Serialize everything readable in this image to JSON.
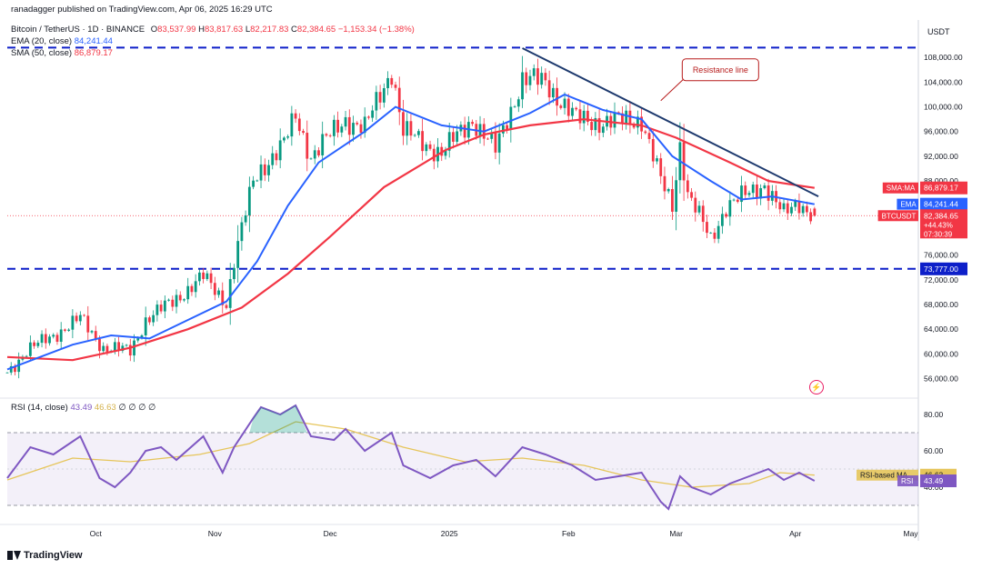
{
  "header": {
    "publisher": "ranadagger published on TradingView.com, Apr 06, 2025 16:29 UTC",
    "symbol": "Bitcoin / TetherUS · 1D · BINANCE",
    "ohlc": {
      "o_label": "O",
      "o": "83,537.99",
      "h_label": "H",
      "h": "83,817.63",
      "l_label": "L",
      "l": "82,217.83",
      "c_label": "C",
      "c": "82,384.65",
      "change": "−1,153.34 (−1.38%)"
    },
    "ema_label": "EMA (20, close)",
    "ema_value": "84,241.44",
    "sma_label": "SMA (50, close)",
    "sma_value": "86,879.17",
    "rsi_label": "RSI (14, close)",
    "rsi_value": "43.49",
    "rsi_ma_value": "46.63",
    "rsi_extra": "∅ ∅ ∅ ∅"
  },
  "branding": {
    "logo_text": "TradingView"
  },
  "icons": {
    "logo": "tradingview-logo-icon",
    "flash": "lightning-icon"
  },
  "colors": {
    "up": "#089981",
    "down": "#f23645",
    "ema": "#2962ff",
    "sma": "#f23645",
    "level": "#0d1fc9",
    "rsi": "#7e57c2",
    "rsi_ma": "#e6c55a",
    "trend": "#1e3a6e"
  },
  "chart_data": {
    "type": "candlestick",
    "title": "Bitcoin / TetherUS · 1D · BINANCE",
    "currency_label": "USDT",
    "y_ticks": [
      "108,000.00",
      "104,000.00",
      "100,000.00",
      "96,000.00",
      "92,000.00",
      "88,000.00",
      "76,000.00",
      "72,000.00",
      "68,000.00",
      "64,000.00",
      "60,000.00",
      "56,000.00"
    ],
    "y_tick_values": [
      108000,
      104000,
      100000,
      96000,
      92000,
      88000,
      76000,
      72000,
      68000,
      64000,
      60000,
      56000
    ],
    "ylim": [
      53000,
      112000
    ],
    "x_ticks": [
      "Oct",
      "Nov",
      "Dec",
      "2025",
      "Feb",
      "Mar",
      "Apr",
      "May"
    ],
    "x_tick_dates": [
      "2024-10-01",
      "2024-11-01",
      "2024-12-01",
      "2025-01-01",
      "2025-02-01",
      "2025-03-01",
      "2025-04-01",
      "2025-05-01"
    ],
    "date_range": [
      "2024-09-08",
      "2025-05-03"
    ],
    "anchors": [
      [
        "2024-09-08",
        57000
      ],
      [
        "2024-09-13",
        60500
      ],
      [
        "2024-09-20",
        63000
      ],
      [
        "2024-09-27",
        65800
      ],
      [
        "2024-10-03",
        61000
      ],
      [
        "2024-10-10",
        60500
      ],
      [
        "2024-10-14",
        65500
      ],
      [
        "2024-10-21",
        68500
      ],
      [
        "2024-10-29",
        72500
      ],
      [
        "2024-11-04",
        68300
      ],
      [
        "2024-11-06",
        75000
      ],
      [
        "2024-11-11",
        88000
      ],
      [
        "2024-11-13",
        90000
      ],
      [
        "2024-11-19",
        94000
      ],
      [
        "2024-11-22",
        98500
      ],
      [
        "2024-11-26",
        92000
      ],
      [
        "2024-12-05",
        98000
      ],
      [
        "2024-12-10",
        96500
      ],
      [
        "2024-12-17",
        106000
      ],
      [
        "2024-12-20",
        96000
      ],
      [
        "2024-12-30",
        92500
      ],
      [
        "2025-01-07",
        98000
      ],
      [
        "2025-01-13",
        93000
      ],
      [
        "2025-01-20",
        104500
      ],
      [
        "2025-01-26",
        104000
      ],
      [
        "2025-02-03",
        98000
      ],
      [
        "2025-02-10",
        97500
      ],
      [
        "2025-02-20",
        98000
      ],
      [
        "2025-02-25",
        88000
      ],
      [
        "2025-02-28",
        84000
      ],
      [
        "2025-03-02",
        94000
      ],
      [
        "2025-03-04",
        86000
      ],
      [
        "2025-03-10",
        78500
      ],
      [
        "2025-03-14",
        84000
      ],
      [
        "2025-03-20",
        86000
      ],
      [
        "2025-03-24",
        87500
      ],
      [
        "2025-03-29",
        82500
      ],
      [
        "2025-04-02",
        84500
      ],
      [
        "2025-04-06",
        82385
      ]
    ],
    "last_candle": {
      "o": 83537.99,
      "h": 83817.63,
      "l": 82217.83,
      "c": 82384.65
    },
    "ema_points": [
      [
        "2024-09-08",
        57500
      ],
      [
        "2024-09-25",
        61500
      ],
      [
        "2024-10-05",
        63000
      ],
      [
        "2024-10-15",
        62500
      ],
      [
        "2024-10-25",
        65500
      ],
      [
        "2024-11-04",
        68500
      ],
      [
        "2024-11-12",
        75000
      ],
      [
        "2024-11-20",
        84000
      ],
      [
        "2024-11-28",
        91000
      ],
      [
        "2024-12-10",
        96000
      ],
      [
        "2024-12-18",
        100000
      ],
      [
        "2024-12-30",
        97000
      ],
      [
        "2025-01-10",
        96000
      ],
      [
        "2025-01-22",
        99000
      ],
      [
        "2025-01-31",
        102000
      ],
      [
        "2025-02-10",
        99500
      ],
      [
        "2025-02-20",
        98000
      ],
      [
        "2025-02-28",
        92000
      ],
      [
        "2025-03-10",
        88000
      ],
      [
        "2025-03-18",
        85000
      ],
      [
        "2025-03-26",
        85500
      ],
      [
        "2025-04-06",
        84241.44
      ]
    ],
    "sma_points": [
      [
        "2024-09-08",
        59500
      ],
      [
        "2024-09-25",
        59000
      ],
      [
        "2024-10-10",
        61000
      ],
      [
        "2024-10-25",
        64000
      ],
      [
        "2024-11-08",
        67500
      ],
      [
        "2024-11-20",
        73000
      ],
      [
        "2024-12-01",
        79000
      ],
      [
        "2024-12-15",
        87000
      ],
      [
        "2024-12-31",
        93000
      ],
      [
        "2025-01-10",
        95500
      ],
      [
        "2025-01-22",
        97000
      ],
      [
        "2025-02-05",
        98000
      ],
      [
        "2025-02-20",
        97000
      ],
      [
        "2025-03-01",
        95000
      ],
      [
        "2025-03-15",
        91000
      ],
      [
        "2025-03-25",
        88000
      ],
      [
        "2025-04-06",
        86879.17
      ]
    ],
    "support_level": {
      "label": "73,777.00",
      "value": 73777
    },
    "upper_level": {
      "value": 109588
    },
    "trendline": [
      [
        "2025-01-20",
        109500
      ],
      [
        "2025-04-07",
        85500
      ]
    ],
    "annotation": {
      "text": "Resistance line",
      "target": [
        "2025-02-25",
        101000
      ],
      "box_at": [
        "2025-03-04",
        106000
      ]
    },
    "price_labels": [
      {
        "label": "SMA:MA",
        "value_text": "86,879.17",
        "value": 86879.17,
        "color": "#f23645"
      },
      {
        "label": "EMA",
        "value_text": "84,241.44",
        "value": 84241.44,
        "color": "#2962ff"
      },
      {
        "label": "BTCUSDT",
        "value_text": "82,384.65",
        "value": 82384.65,
        "color": "#f23645",
        "sub1": "+44.43%",
        "sub2": "07:30:39"
      },
      {
        "label": "",
        "value_text": "73,777.00",
        "value": 73777,
        "color": "#0d1fc9"
      }
    ],
    "rsi": {
      "ylim": [
        20,
        88
      ],
      "y_ticks": [
        "80.00",
        "60.00",
        "40.00"
      ],
      "y_tick_values": [
        80,
        60,
        40
      ],
      "band": [
        30,
        70
      ],
      "rsi_label": "RSI",
      "rsi_value": "43.49",
      "ma_label": "RSI-based MA",
      "ma_value": "46.63",
      "rsi_points": [
        [
          "2024-09-08",
          45
        ],
        [
          "2024-09-14",
          62
        ],
        [
          "2024-09-20",
          58
        ],
        [
          "2024-09-27",
          68
        ],
        [
          "2024-10-02",
          45
        ],
        [
          "2024-10-06",
          40
        ],
        [
          "2024-10-10",
          48
        ],
        [
          "2024-10-14",
          60
        ],
        [
          "2024-10-18",
          62
        ],
        [
          "2024-10-22",
          55
        ],
        [
          "2024-10-29",
          68
        ],
        [
          "2024-11-03",
          48
        ],
        [
          "2024-11-06",
          62
        ],
        [
          "2024-11-11",
          78
        ],
        [
          "2024-11-13",
          84
        ],
        [
          "2024-11-18",
          80
        ],
        [
          "2024-11-22",
          85
        ],
        [
          "2024-11-26",
          68
        ],
        [
          "2024-12-02",
          66
        ],
        [
          "2024-12-05",
          72
        ],
        [
          "2024-12-10",
          60
        ],
        [
          "2024-12-17",
          70
        ],
        [
          "2024-12-20",
          52
        ],
        [
          "2024-12-27",
          45
        ],
        [
          "2025-01-02",
          52
        ],
        [
          "2025-01-08",
          55
        ],
        [
          "2025-01-13",
          46
        ],
        [
          "2025-01-20",
          62
        ],
        [
          "2025-01-26",
          58
        ],
        [
          "2025-02-02",
          52
        ],
        [
          "2025-02-08",
          44
        ],
        [
          "2025-02-14",
          46
        ],
        [
          "2025-02-20",
          48
        ],
        [
          "2025-02-25",
          32
        ],
        [
          "2025-02-27",
          28
        ],
        [
          "2025-03-02",
          46
        ],
        [
          "2025-03-05",
          40
        ],
        [
          "2025-03-10",
          36
        ],
        [
          "2025-03-15",
          42
        ],
        [
          "2025-03-20",
          46
        ],
        [
          "2025-03-25",
          50
        ],
        [
          "2025-03-29",
          44
        ],
        [
          "2025-04-02",
          48
        ],
        [
          "2025-04-06",
          43.49
        ]
      ],
      "ma_points": [
        [
          "2024-09-08",
          44
        ],
        [
          "2024-09-25",
          56
        ],
        [
          "2024-10-10",
          54
        ],
        [
          "2024-10-28",
          58
        ],
        [
          "2024-11-10",
          64
        ],
        [
          "2024-11-22",
          76
        ],
        [
          "2024-12-05",
          72
        ],
        [
          "2024-12-20",
          62
        ],
        [
          "2025-01-05",
          54
        ],
        [
          "2025-01-20",
          56
        ],
        [
          "2025-02-05",
          52
        ],
        [
          "2025-02-20",
          44
        ],
        [
          "2025-03-05",
          40
        ],
        [
          "2025-03-20",
          42
        ],
        [
          "2025-03-28",
          48
        ],
        [
          "2025-04-06",
          46.63
        ]
      ]
    }
  }
}
